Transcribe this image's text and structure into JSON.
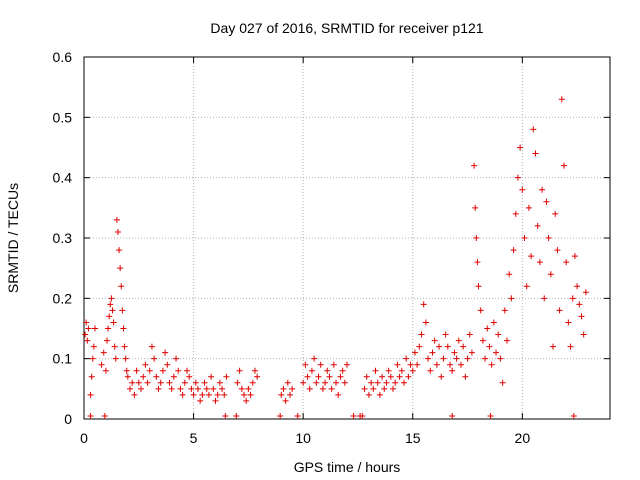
{
  "chart_data": {
    "type": "scatter",
    "title": "Day 027 of 2016, SRMTID for receiver p121",
    "xlabel": "GPS time / hours",
    "ylabel": "SRMTID / TECUs",
    "xlim": [
      0,
      24
    ],
    "ylim": [
      0,
      0.6
    ],
    "x_ticks": [
      0,
      5,
      10,
      15,
      20
    ],
    "y_ticks": [
      0,
      0.1,
      0.2,
      0.3,
      0.4,
      0.5,
      0.6
    ],
    "x_tick_labels": [
      "0",
      "5",
      "10",
      "15",
      "20"
    ],
    "y_tick_labels": [
      "0",
      "0.1",
      "0.2",
      "0.3",
      "0.4",
      "0.5",
      "0.6"
    ],
    "grid": true,
    "marker": "plus",
    "color": "#e00000",
    "series": [
      {
        "name": "SRMTID",
        "x": [
          0.05,
          0.1,
          0.15,
          0.2,
          0.3,
          0.35,
          0.4,
          0.45,
          0.5,
          0.8,
          0.9,
          1.0,
          1.05,
          1.1,
          1.15,
          1.2,
          1.25,
          1.3,
          1.35,
          1.4,
          1.45,
          1.5,
          1.55,
          1.6,
          1.65,
          1.7,
          1.75,
          1.8,
          1.85,
          1.9,
          1.95,
          2.0,
          2.1,
          2.2,
          2.3,
          2.4,
          2.5,
          2.6,
          2.7,
          2.8,
          2.9,
          3.0,
          3.1,
          3.2,
          3.3,
          3.4,
          3.5,
          3.6,
          3.7,
          3.8,
          3.9,
          4.0,
          4.1,
          4.2,
          4.3,
          4.4,
          4.5,
          4.6,
          4.7,
          4.8,
          4.9,
          5.0,
          5.1,
          5.2,
          5.3,
          5.4,
          5.5,
          5.6,
          5.7,
          5.8,
          5.9,
          6.0,
          6.1,
          6.2,
          6.3,
          6.4,
          6.5,
          7.0,
          7.1,
          7.2,
          7.3,
          7.4,
          7.5,
          7.6,
          7.7,
          7.8,
          7.9,
          9.0,
          9.1,
          9.2,
          9.3,
          9.4,
          9.5,
          10.0,
          10.1,
          10.2,
          10.3,
          10.4,
          10.5,
          10.6,
          10.7,
          10.8,
          10.9,
          11.0,
          11.1,
          11.2,
          11.3,
          11.4,
          11.5,
          11.6,
          11.7,
          11.8,
          11.9,
          12.0,
          12.8,
          12.9,
          13.0,
          13.1,
          13.2,
          13.3,
          13.4,
          13.5,
          13.6,
          13.7,
          13.8,
          13.9,
          14.0,
          14.1,
          14.2,
          14.3,
          14.4,
          14.5,
          14.6,
          14.7,
          14.8,
          14.9,
          15.0,
          15.1,
          15.2,
          15.3,
          15.4,
          15.5,
          15.6,
          15.7,
          15.8,
          15.9,
          16.0,
          16.1,
          16.2,
          16.3,
          16.4,
          16.5,
          16.6,
          16.7,
          16.8,
          16.9,
          17.0,
          17.1,
          17.2,
          17.3,
          17.4,
          17.5,
          17.6,
          17.7,
          17.8,
          17.85,
          17.9,
          17.95,
          18.0,
          18.1,
          18.2,
          18.3,
          18.4,
          18.5,
          18.6,
          18.7,
          18.8,
          18.9,
          19.0,
          19.1,
          19.2,
          19.3,
          19.4,
          19.5,
          19.6,
          19.7,
          19.8,
          19.9,
          20.0,
          20.1,
          20.2,
          20.3,
          20.4,
          20.5,
          20.6,
          20.7,
          20.8,
          20.9,
          21.0,
          21.1,
          21.2,
          21.3,
          21.4,
          21.5,
          21.6,
          21.7,
          21.8,
          21.9,
          22.0,
          22.1,
          22.2,
          22.3,
          22.4,
          22.5,
          22.6,
          22.7,
          22.8,
          22.9,
          0.3,
          0.95,
          6.45,
          6.95,
          8.95,
          9.75,
          12.3,
          12.6,
          12.7,
          16.8,
          18.55,
          22.35
        ],
        "y": [
          0.14,
          0.16,
          0.13,
          0.15,
          0.04,
          0.07,
          0.1,
          0.12,
          0.15,
          0.09,
          0.11,
          0.08,
          0.13,
          0.15,
          0.17,
          0.19,
          0.2,
          0.18,
          0.16,
          0.12,
          0.1,
          0.33,
          0.31,
          0.28,
          0.25,
          0.22,
          0.18,
          0.15,
          0.12,
          0.1,
          0.08,
          0.07,
          0.05,
          0.06,
          0.04,
          0.08,
          0.06,
          0.05,
          0.07,
          0.09,
          0.06,
          0.08,
          0.12,
          0.1,
          0.07,
          0.05,
          0.06,
          0.08,
          0.11,
          0.09,
          0.06,
          0.05,
          0.07,
          0.1,
          0.08,
          0.05,
          0.04,
          0.06,
          0.08,
          0.07,
          0.05,
          0.04,
          0.06,
          0.05,
          0.03,
          0.04,
          0.06,
          0.05,
          0.04,
          0.07,
          0.05,
          0.03,
          0.04,
          0.06,
          0.05,
          0.04,
          0.07,
          0.06,
          0.08,
          0.05,
          0.04,
          0.03,
          0.05,
          0.04,
          0.06,
          0.08,
          0.07,
          0.04,
          0.05,
          0.03,
          0.06,
          0.04,
          0.05,
          0.06,
          0.09,
          0.07,
          0.05,
          0.08,
          0.1,
          0.06,
          0.07,
          0.09,
          0.05,
          0.06,
          0.08,
          0.07,
          0.05,
          0.09,
          0.06,
          0.04,
          0.07,
          0.08,
          0.06,
          0.09,
          0.05,
          0.07,
          0.04,
          0.06,
          0.05,
          0.08,
          0.06,
          0.04,
          0.07,
          0.05,
          0.06,
          0.08,
          0.07,
          0.05,
          0.06,
          0.09,
          0.07,
          0.08,
          0.06,
          0.1,
          0.07,
          0.09,
          0.08,
          0.11,
          0.09,
          0.12,
          0.14,
          0.19,
          0.16,
          0.1,
          0.08,
          0.11,
          0.13,
          0.09,
          0.12,
          0.07,
          0.1,
          0.14,
          0.12,
          0.09,
          0.08,
          0.11,
          0.1,
          0.13,
          0.09,
          0.12,
          0.07,
          0.1,
          0.14,
          0.11,
          0.42,
          0.35,
          0.3,
          0.26,
          0.22,
          0.18,
          0.13,
          0.1,
          0.15,
          0.12,
          0.09,
          0.16,
          0.11,
          0.14,
          0.1,
          0.06,
          0.18,
          0.13,
          0.24,
          0.2,
          0.28,
          0.34,
          0.4,
          0.45,
          0.38,
          0.3,
          0.22,
          0.35,
          0.27,
          0.48,
          0.44,
          0.32,
          0.26,
          0.38,
          0.2,
          0.36,
          0.3,
          0.24,
          0.12,
          0.34,
          0.28,
          0.18,
          0.53,
          0.42,
          0.26,
          0.16,
          0.12,
          0.2,
          0.27,
          0.22,
          0.19,
          0.17,
          0.14,
          0.21,
          0.005,
          0.005,
          0.005,
          0.005,
          0.005,
          0.005,
          0.005,
          0.005,
          0.005,
          0.005,
          0.005,
          0.005
        ]
      }
    ]
  }
}
